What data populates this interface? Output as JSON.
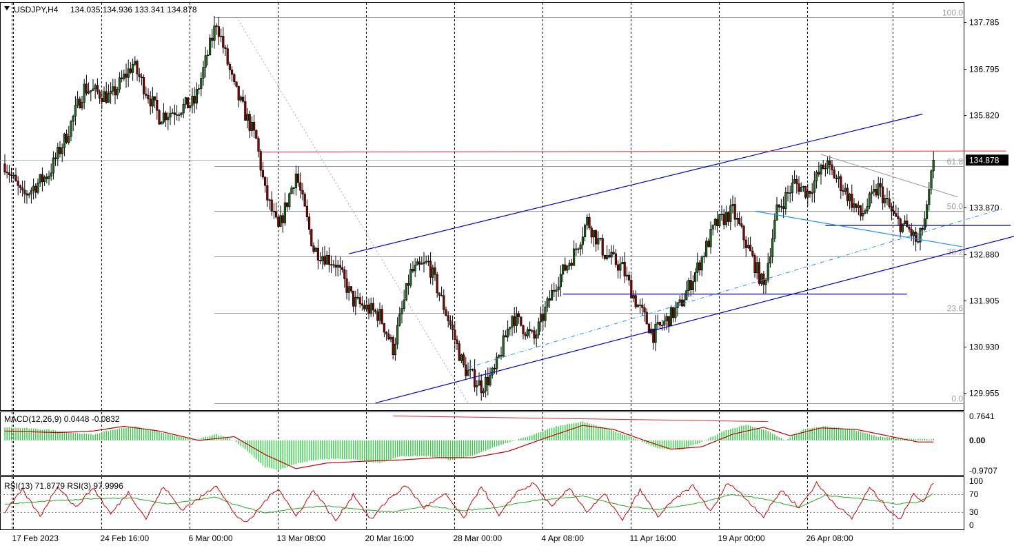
{
  "header": {
    "symbol": "USDJPY,H4",
    "ohlc": "134.035 134.936 133.341 134.878"
  },
  "colors": {
    "candle_up": "#1a6b1a",
    "candle_down": "#8b0000",
    "channel": "#0000cd",
    "blue_dashdot": "#1e90ff",
    "fib": "#9a9a9a",
    "resistance": "#d93030",
    "macd_hist": "#2ecc40",
    "macd_signal": "#c00000",
    "rsi_fast": "#d00000",
    "rsi_slow": "#22aa22",
    "price_tag_bg": "#000000"
  },
  "chart_data": [
    {
      "type": "candlestick",
      "title": "USDJPY,H4",
      "ylim": [
        129.6,
        138.2
      ],
      "y_ticks": [
        "137.785",
        "136.795",
        "135.820",
        "134.878",
        "133.870",
        "132.880",
        "131.905",
        "130.930",
        "129.955"
      ],
      "current_price": "134.878",
      "x_labels": [
        "17 Feb 2023",
        "24 Feb 16:00",
        "6 Mar 00:00",
        "13 Mar 08:00",
        "20 Mar 16:00",
        "28 Mar 00:00",
        "4 Apr 08:00",
        "11 Apr 16:00",
        "19 Apr 00:00",
        "26 Apr 08:00"
      ],
      "path_anchors": [
        [
          0,
          134.8
        ],
        [
          8,
          134.1
        ],
        [
          20,
          134.6
        ],
        [
          28,
          135.4
        ],
        [
          36,
          136.4
        ],
        [
          48,
          136.2
        ],
        [
          58,
          136.9
        ],
        [
          70,
          135.8
        ],
        [
          86,
          136.1
        ],
        [
          96,
          137.8
        ],
        [
          104,
          136.4
        ],
        [
          114,
          135.3
        ],
        [
          118,
          134.2
        ],
        [
          124,
          133.4
        ],
        [
          132,
          134.6
        ],
        [
          140,
          133.0
        ],
        [
          150,
          132.7
        ],
        [
          158,
          131.9
        ],
        [
          170,
          131.6
        ],
        [
          176,
          130.9
        ],
        [
          184,
          132.5
        ],
        [
          192,
          132.7
        ],
        [
          202,
          131.4
        ],
        [
          208,
          130.5
        ],
        [
          216,
          130.1
        ],
        [
          222,
          130.4
        ],
        [
          230,
          131.6
        ],
        [
          240,
          131.1
        ],
        [
          250,
          132.3
        ],
        [
          258,
          132.9
        ],
        [
          264,
          133.6
        ],
        [
          272,
          132.9
        ],
        [
          280,
          132.6
        ],
        [
          286,
          131.9
        ],
        [
          294,
          131.2
        ],
        [
          306,
          131.8
        ],
        [
          314,
          132.6
        ],
        [
          322,
          133.5
        ],
        [
          330,
          133.8
        ],
        [
          338,
          132.9
        ],
        [
          344,
          132.2
        ],
        [
          350,
          133.8
        ],
        [
          358,
          134.4
        ],
        [
          364,
          134.2
        ],
        [
          372,
          134.8
        ],
        [
          380,
          134.3
        ],
        [
          388,
          133.7
        ],
        [
          396,
          134.3
        ],
        [
          404,
          133.6
        ],
        [
          410,
          133.4
        ],
        [
          414,
          133.1
        ],
        [
          418,
          133.8
        ],
        [
          421,
          134.878
        ]
      ],
      "fibonacci_levels": [
        {
          "label": "100.0",
          "price": 137.9
        },
        {
          "label": "61.8",
          "price": 134.75
        },
        {
          "label": "50.0",
          "price": 133.8
        },
        {
          "label": "38.2",
          "price": 132.85
        },
        {
          "label": "23.6",
          "price": 131.65
        },
        {
          "label": "0.0",
          "price": 129.75
        }
      ],
      "drawings": [
        {
          "kind": "channel-upper",
          "from": [
            156,
            132.9
          ],
          "to": [
            416,
            135.85
          ]
        },
        {
          "kind": "channel-lower",
          "from": [
            168,
            129.75
          ],
          "to": [
            460,
            133.3
          ]
        },
        {
          "kind": "channel-mid-dashdot",
          "from": [
            210,
            130.5
          ],
          "to": [
            452,
            133.85
          ]
        },
        {
          "kind": "resistance",
          "from": [
            116,
            135.05
          ],
          "to": [
            454,
            135.07
          ]
        },
        {
          "kind": "horizontal-support",
          "from": [
            253,
            132.05
          ],
          "to": [
            409,
            132.05
          ]
        },
        {
          "kind": "horizontal-neckline",
          "from": [
            372,
            133.5
          ],
          "to": [
            456,
            133.5
          ]
        },
        {
          "kind": "falling-trend",
          "from": [
            340,
            133.8
          ],
          "to": [
            434,
            133.05
          ]
        },
        {
          "kind": "fib-swing",
          "from": [
            105,
            137.9
          ],
          "to": [
            210,
            129.75
          ]
        },
        {
          "kind": "gray-trend",
          "from": [
            370,
            135.0
          ],
          "to": [
            432,
            134.1
          ]
        }
      ]
    },
    {
      "type": "histogram",
      "title": "MACD(12,26,9) 0.0448 -0.0832",
      "ylim": [
        -1.1,
        0.9
      ],
      "y_ticks": [
        "0.7641",
        "0.00",
        "-0.9707"
      ],
      "histogram_anchors": [
        [
          0,
          0.42
        ],
        [
          20,
          0.34
        ],
        [
          40,
          0.18
        ],
        [
          46,
          0.3
        ],
        [
          58,
          0.45
        ],
        [
          74,
          0.22
        ],
        [
          86,
          0.02
        ],
        [
          96,
          0.2
        ],
        [
          104,
          0.0
        ],
        [
          110,
          -0.35
        ],
        [
          118,
          -0.85
        ],
        [
          124,
          -0.95
        ],
        [
          132,
          -0.75
        ],
        [
          140,
          -0.62
        ],
        [
          150,
          -0.58
        ],
        [
          158,
          -0.6
        ],
        [
          170,
          -0.72
        ],
        [
          180,
          -0.5
        ],
        [
          192,
          -0.5
        ],
        [
          202,
          -0.62
        ],
        [
          212,
          -0.5
        ],
        [
          222,
          -0.2
        ],
        [
          236,
          0.1
        ],
        [
          250,
          0.45
        ],
        [
          262,
          0.6
        ],
        [
          274,
          0.35
        ],
        [
          286,
          0.05
        ],
        [
          296,
          -0.25
        ],
        [
          306,
          -0.3
        ],
        [
          316,
          -0.05
        ],
        [
          326,
          0.3
        ],
        [
          336,
          0.5
        ],
        [
          346,
          0.3
        ],
        [
          354,
          0.0
        ],
        [
          362,
          0.35
        ],
        [
          372,
          0.45
        ],
        [
          384,
          0.35
        ],
        [
          396,
          0.12
        ],
        [
          408,
          0.05
        ],
        [
          421,
          0.04
        ]
      ],
      "signal_anchors": [
        [
          0,
          0.3
        ],
        [
          24,
          0.25
        ],
        [
          40,
          0.3
        ],
        [
          54,
          0.45
        ],
        [
          70,
          0.3
        ],
        [
          88,
          0.0
        ],
        [
          104,
          0.12
        ],
        [
          118,
          -0.45
        ],
        [
          132,
          -0.9
        ],
        [
          146,
          -0.72
        ],
        [
          164,
          -0.66
        ],
        [
          180,
          -0.62
        ],
        [
          196,
          -0.55
        ],
        [
          212,
          -0.55
        ],
        [
          228,
          -0.35
        ],
        [
          246,
          0.1
        ],
        [
          262,
          0.48
        ],
        [
          276,
          0.35
        ],
        [
          290,
          0.0
        ],
        [
          302,
          -0.28
        ],
        [
          316,
          -0.2
        ],
        [
          330,
          0.2
        ],
        [
          344,
          0.42
        ],
        [
          356,
          0.15
        ],
        [
          370,
          0.4
        ],
        [
          386,
          0.35
        ],
        [
          400,
          0.15
        ],
        [
          414,
          -0.05
        ],
        [
          421,
          -0.05
        ]
      ],
      "resistance_line": {
        "from": [
          176,
          0.78
        ],
        "to": [
          346,
          0.6
        ]
      }
    },
    {
      "type": "line",
      "title": "RSI(13) 71.8779 RSI(3) 97.9996",
      "ylim": [
        0,
        100
      ],
      "y_ticks": [
        "100",
        "70",
        "30",
        "0"
      ],
      "levels": [
        70,
        30
      ],
      "series": [
        {
          "name": "RSI(13)",
          "anchors": [
            [
              0,
              48
            ],
            [
              20,
              55
            ],
            [
              40,
              60
            ],
            [
              58,
              62
            ],
            [
              74,
              48
            ],
            [
              96,
              64
            ],
            [
              104,
              47
            ],
            [
              118,
              28
            ],
            [
              132,
              38
            ],
            [
              146,
              44
            ],
            [
              160,
              36
            ],
            [
              176,
              30
            ],
            [
              192,
              44
            ],
            [
              208,
              33
            ],
            [
              222,
              40
            ],
            [
              240,
              56
            ],
            [
              262,
              66
            ],
            [
              280,
              44
            ],
            [
              296,
              36
            ],
            [
              316,
              52
            ],
            [
              330,
              70
            ],
            [
              346,
              58
            ],
            [
              360,
              40
            ],
            [
              372,
              68
            ],
            [
              388,
              60
            ],
            [
              404,
              48
            ],
            [
              414,
              52
            ],
            [
              421,
              72
            ]
          ]
        },
        {
          "name": "RSI(3)",
          "anchors": [
            [
              0,
              30
            ],
            [
              8,
              80
            ],
            [
              16,
              20
            ],
            [
              24,
              90
            ],
            [
              32,
              40
            ],
            [
              40,
              85
            ],
            [
              48,
              25
            ],
            [
              56,
              75
            ],
            [
              64,
              15
            ],
            [
              72,
              88
            ],
            [
              80,
              35
            ],
            [
              88,
              60
            ],
            [
              96,
              92
            ],
            [
              104,
              25
            ],
            [
              110,
              5
            ],
            [
              118,
              55
            ],
            [
              124,
              85
            ],
            [
              132,
              20
            ],
            [
              140,
              80
            ],
            [
              150,
              10
            ],
            [
              158,
              70
            ],
            [
              166,
              12
            ],
            [
              174,
              60
            ],
            [
              182,
              90
            ],
            [
              190,
              40
            ],
            [
              200,
              70
            ],
            [
              208,
              15
            ],
            [
              216,
              90
            ],
            [
              224,
              20
            ],
            [
              232,
              75
            ],
            [
              240,
              95
            ],
            [
              248,
              40
            ],
            [
              256,
              85
            ],
            [
              264,
              30
            ],
            [
              272,
              70
            ],
            [
              280,
              10
            ],
            [
              288,
              80
            ],
            [
              296,
              20
            ],
            [
              304,
              60
            ],
            [
              312,
              90
            ],
            [
              320,
              30
            ],
            [
              328,
              98
            ],
            [
              336,
              60
            ],
            [
              344,
              20
            ],
            [
              352,
              80
            ],
            [
              360,
              40
            ],
            [
              368,
              95
            ],
            [
              376,
              50
            ],
            [
              384,
              15
            ],
            [
              392,
              85
            ],
            [
              400,
              40
            ],
            [
              406,
              12
            ],
            [
              412,
              75
            ],
            [
              416,
              50
            ],
            [
              421,
              98
            ]
          ]
        }
      ]
    }
  ]
}
